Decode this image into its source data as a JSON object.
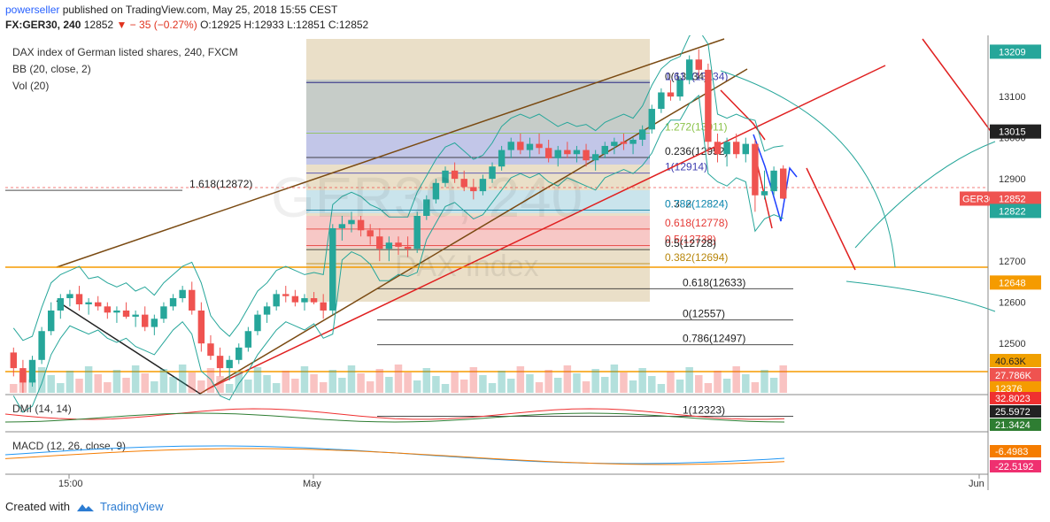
{
  "header": {
    "author": "powerseller",
    "published_text": "published on TradingView.com, May 25, 2018 15:55 CEST",
    "symbol": "FX:GER30, 240",
    "last": "12852",
    "change": "− 35 (−0.27%)",
    "ohlc": "O:12925 H:12933 L:12851 C:12852"
  },
  "legend": {
    "title": "DAX index of German listed shares, 240, FXCM",
    "bb": "BB (20, close, 2)",
    "vol": "Vol (20)",
    "dmi": "DMI (14, 14)",
    "macd": "MACD (12, 26, close, 9)"
  },
  "watermark": {
    "symbol": "GER30, 240",
    "name": "DAX Index"
  },
  "x_axis": {
    "ticks": [
      "15:00",
      "May",
      "Jun"
    ]
  },
  "price_axis": {
    "ticks": [
      "13100",
      "13000",
      "12900",
      "12700",
      "12600",
      "12500"
    ],
    "badges": [
      {
        "label": "13209",
        "value": 13209,
        "color": "#26a69a"
      },
      {
        "label": "13015",
        "value": 13015,
        "color": "#222222"
      },
      {
        "label": "GER30",
        "value": 12852,
        "color": "#ef5350"
      },
      {
        "label": "12852",
        "value": 12852,
        "color": "#ef5350"
      },
      {
        "label": "12822",
        "value": 12822,
        "color": "#26a69a"
      },
      {
        "label": "12648",
        "value": 12648,
        "color": "#f59b00"
      }
    ]
  },
  "volume_axis": {
    "badges": [
      {
        "label": "40.63K",
        "color": "#f0a000",
        "text": "#222222"
      },
      {
        "label": "27.786K",
        "color": "#ef5350",
        "text": "#ffffff"
      },
      {
        "label": "12376",
        "color": "#f59b00",
        "text": "#ffffff"
      }
    ]
  },
  "dmi_axis": {
    "badges": [
      {
        "label": "32.8023",
        "color": "#ef3030"
      },
      {
        "label": "25.5972",
        "color": "#222222"
      },
      {
        "label": "21.3424",
        "color": "#2e7d32"
      }
    ]
  },
  "macd_axis": {
    "badges": [
      {
        "label": "-6.4983",
        "color": "#f57c00"
      },
      {
        "label": "-22.5192",
        "color": "#ef3070"
      }
    ]
  },
  "fib_levels": [
    {
      "label": "1.618(12872)",
      "value": 12872,
      "color": "#222222"
    },
    {
      "label": "0(13134)",
      "value": 13134,
      "color": "#222222"
    },
    {
      "label": "1.618(13134)",
      "value": 13134,
      "color": "#3f3fb0"
    },
    {
      "label": "1.272(13011)",
      "value": 13011,
      "color": "#8bc34a"
    },
    {
      "label": "0.236(12952)",
      "value": 12952,
      "color": "#222222"
    },
    {
      "label": "1(12914)",
      "value": 12914,
      "color": "#3f3fb0"
    },
    {
      "label": "0.382(12824)",
      "value": 12824,
      "color": "#222222"
    },
    {
      "label": "0.786(12824)",
      "value": 12824,
      "color": "#26a0c8"
    },
    {
      "label": "0.618(12778)",
      "value": 12778,
      "color": "#e53935"
    },
    {
      "label": "0.5(12738)",
      "value": 12738,
      "color": "#e53935"
    },
    {
      "label": "0.5(12728)",
      "value": 12728,
      "color": "#222222"
    },
    {
      "label": "0.382(12694)",
      "value": 12694,
      "color": "#b8860b"
    },
    {
      "label": "0.618(12633)",
      "value": 12633,
      "color": "#222222"
    },
    {
      "label": "0(12557)",
      "value": 12557,
      "color": "#222222"
    },
    {
      "label": "0.786(12497)",
      "value": 12497,
      "color": "#222222"
    },
    {
      "label": "1(12323)",
      "value": 12323,
      "color": "#222222"
    }
  ],
  "chart_data": {
    "type": "candlestick",
    "price_range": [
      12380,
      13240
    ],
    "up_color": "#26a69a",
    "down_color": "#ef5350",
    "candles": [
      [
        12478,
        12490,
        12420,
        12440
      ],
      [
        12440,
        12460,
        12380,
        12405
      ],
      [
        12405,
        12470,
        12395,
        12460
      ],
      [
        12460,
        12540,
        12450,
        12530
      ],
      [
        12530,
        12600,
        12520,
        12580
      ],
      [
        12580,
        12620,
        12560,
        12610
      ],
      [
        12610,
        12630,
        12590,
        12620
      ],
      [
        12620,
        12640,
        12580,
        12595
      ],
      [
        12595,
        12610,
        12570,
        12600
      ],
      [
        12600,
        12615,
        12580,
        12590
      ],
      [
        12590,
        12600,
        12560,
        12575
      ],
      [
        12575,
        12590,
        12550,
        12580
      ],
      [
        12580,
        12600,
        12560,
        12565
      ],
      [
        12565,
        12580,
        12540,
        12570
      ],
      [
        12570,
        12590,
        12530,
        12540
      ],
      [
        12540,
        12570,
        12520,
        12560
      ],
      [
        12560,
        12600,
        12550,
        12590
      ],
      [
        12590,
        12620,
        12580,
        12610
      ],
      [
        12610,
        12640,
        12600,
        12630
      ],
      [
        12630,
        12650,
        12570,
        12580
      ],
      [
        12580,
        12600,
        12480,
        12500
      ],
      [
        12500,
        12520,
        12460,
        12470
      ],
      [
        12470,
        12490,
        12420,
        12440
      ],
      [
        12440,
        12470,
        12410,
        12460
      ],
      [
        12460,
        12500,
        12450,
        12490
      ],
      [
        12490,
        12540,
        12480,
        12530
      ],
      [
        12530,
        12580,
        12520,
        12570
      ],
      [
        12570,
        12600,
        12550,
        12590
      ],
      [
        12590,
        12630,
        12580,
        12620
      ],
      [
        12620,
        12640,
        12600,
        12615
      ],
      [
        12615,
        12630,
        12590,
        12600
      ],
      [
        12600,
        12620,
        12580,
        12610
      ],
      [
        12610,
        12625,
        12595,
        12600
      ],
      [
        12600,
        12620,
        12560,
        12580
      ],
      [
        12580,
        12790,
        12570,
        12780
      ],
      [
        12780,
        12810,
        12750,
        12790
      ],
      [
        12790,
        12820,
        12770,
        12800
      ],
      [
        12800,
        12810,
        12760,
        12775
      ],
      [
        12775,
        12790,
        12740,
        12760
      ],
      [
        12760,
        12780,
        12700,
        12730
      ],
      [
        12730,
        12760,
        12700,
        12745
      ],
      [
        12745,
        12760,
        12715,
        12735
      ],
      [
        12735,
        12760,
        12710,
        12730
      ],
      [
        12730,
        12820,
        12720,
        12810
      ],
      [
        12810,
        12860,
        12800,
        12850
      ],
      [
        12850,
        12900,
        12840,
        12890
      ],
      [
        12890,
        12930,
        12880,
        12920
      ],
      [
        12920,
        12940,
        12890,
        12900
      ],
      [
        12900,
        12920,
        12870,
        12880
      ],
      [
        12880,
        12900,
        12850,
        12870
      ],
      [
        12870,
        12910,
        12860,
        12900
      ],
      [
        12900,
        12940,
        12890,
        12930
      ],
      [
        12930,
        12980,
        12920,
        12970
      ],
      [
        12970,
        13000,
        12950,
        12990
      ],
      [
        12990,
        13010,
        12960,
        12970
      ],
      [
        12970,
        13000,
        12950,
        12985
      ],
      [
        12985,
        13010,
        12960,
        12975
      ],
      [
        12975,
        12995,
        12940,
        12950
      ],
      [
        12950,
        12980,
        12930,
        12970
      ],
      [
        12970,
        12990,
        12950,
        12960
      ],
      [
        12960,
        12980,
        12940,
        12970
      ],
      [
        12970,
        12985,
        12930,
        12945
      ],
      [
        12945,
        12970,
        12920,
        12960
      ],
      [
        12960,
        12990,
        12950,
        12980
      ],
      [
        12980,
        13000,
        12960,
        12990
      ],
      [
        12990,
        13010,
        12970,
        12985
      ],
      [
        12985,
        13000,
        12960,
        12995
      ],
      [
        12995,
        13030,
        12980,
        13020
      ],
      [
        13020,
        13080,
        13010,
        13070
      ],
      [
        13070,
        13120,
        13060,
        13110
      ],
      [
        13110,
        13140,
        13090,
        13100
      ],
      [
        13100,
        13150,
        13090,
        13140
      ],
      [
        13140,
        13200,
        13130,
        13190
      ],
      [
        13190,
        13215,
        13150,
        13165
      ],
      [
        13165,
        13180,
        12960,
        12990
      ],
      [
        12990,
        13010,
        12940,
        12960
      ],
      [
        12960,
        13000,
        12930,
        12990
      ],
      [
        12990,
        13010,
        12950,
        12960
      ],
      [
        12960,
        13000,
        12940,
        12985
      ],
      [
        12985,
        12995,
        12820,
        12860
      ],
      [
        12860,
        12920,
        12850,
        12870
      ],
      [
        12870,
        12930,
        12860,
        12920
      ],
      [
        12925,
        12933,
        12851,
        12852
      ]
    ]
  }
}
